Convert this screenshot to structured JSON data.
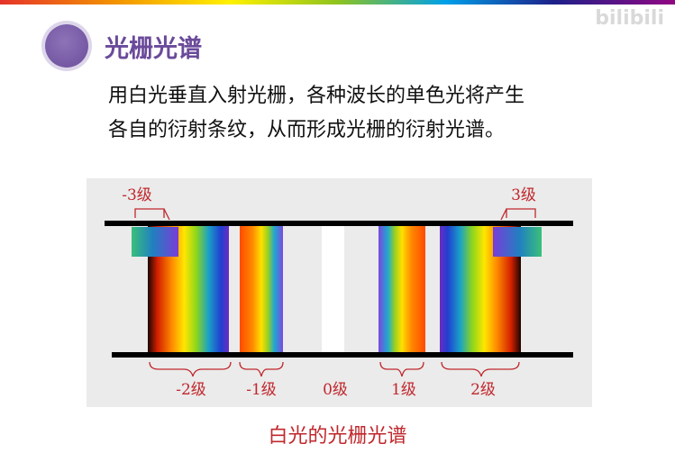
{
  "slide": {
    "title": "光栅光谱",
    "watermark": "bilibili",
    "description_lines": [
      "用白光垂直入射光栅，各种波长的单色光将产生",
      "各自的衍射条纹，从而形成光栅的衍射光谱。"
    ]
  },
  "diagram": {
    "orders": [
      {
        "label": "-3级"
      },
      {
        "label": "-2级"
      },
      {
        "label": "-1级"
      },
      {
        "label": "0级"
      },
      {
        "label": "1级"
      },
      {
        "label": "2级"
      },
      {
        "label": "3级"
      }
    ],
    "caption": "白光的光栅光谱"
  },
  "colors": {
    "title": "#6a4a9a",
    "label_red": "#c0282d",
    "panel_bg": "#ebebeb"
  }
}
